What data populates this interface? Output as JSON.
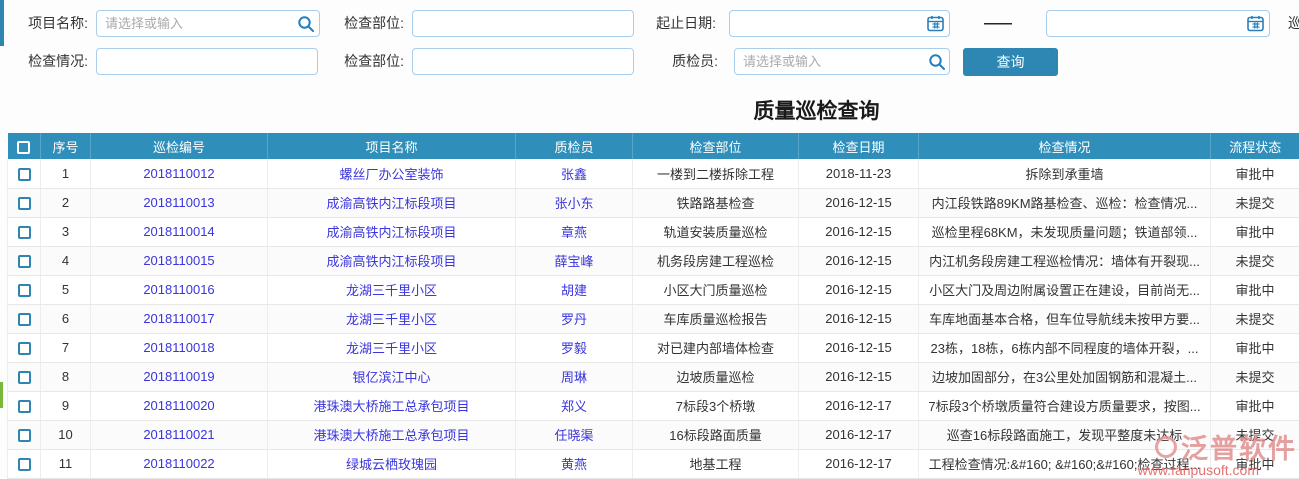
{
  "colors": {
    "header_bg": "#2f8fba",
    "button_bg": "#2d87b2",
    "link_color": "#3a35dd",
    "accent_top": "#2e86b0",
    "accent_green": "#7ab83a",
    "watermark": "#e08f8f"
  },
  "filters": {
    "project_label": "项目名称:",
    "project_placeholder": "请选择或输入",
    "part1_label": "检查部位:",
    "daterange_label": "起止日期:",
    "range_dash": "——",
    "situation_label": "检查情况:",
    "part2_label": "检查部位:",
    "inspector_label": "质检员:",
    "inspector_placeholder": "请选择或输入",
    "query_button": "查询",
    "clipped_text": "巡"
  },
  "title": "质量巡检查询",
  "table": {
    "headers": [
      "序号",
      "巡检编号",
      "项目名称",
      "质检员",
      "检查部位",
      "检查日期",
      "检查情况",
      "流程状态"
    ],
    "rows": [
      {
        "no": "1",
        "code": "2018110012",
        "project": "螺丝厂办公室装饰",
        "inspector": "张鑫",
        "part": "一楼到二楼拆除工程",
        "date": "2018-11-23",
        "situation": "拆除到承重墙",
        "status": "审批中"
      },
      {
        "no": "2",
        "code": "2018110013",
        "project": "成渝高铁内江标段项目",
        "inspector": "张小东",
        "part": "铁路路基检查",
        "date": "2016-12-15",
        "situation": "内江段铁路89KM路基检查、巡检：检查情况...",
        "status": "未提交"
      },
      {
        "no": "3",
        "code": "2018110014",
        "project": "成渝高铁内江标段项目",
        "inspector": "章燕",
        "part": "轨道安装质量巡检",
        "date": "2016-12-15",
        "situation": "巡检里程68KM，未发现质量问题；铁道部领...",
        "status": "审批中"
      },
      {
        "no": "4",
        "code": "2018110015",
        "project": "成渝高铁内江标段项目",
        "inspector": "薛宝峰",
        "part": "机务段房建工程巡检",
        "date": "2016-12-15",
        "situation": "内江机务段房建工程巡检情况：墙体有开裂现...",
        "status": "未提交"
      },
      {
        "no": "5",
        "code": "2018110016",
        "project": "龙湖三千里小区",
        "inspector": "胡建",
        "part": "小区大门质量巡检",
        "date": "2016-12-15",
        "situation": "小区大门及周边附属设置正在建设，目前尚无...",
        "status": "审批中"
      },
      {
        "no": "6",
        "code": "2018110017",
        "project": "龙湖三千里小区",
        "inspector": "罗丹",
        "part": "车库质量巡检报告",
        "date": "2016-12-15",
        "situation": "车库地面基本合格，但车位导航线未按甲方要...",
        "status": "未提交"
      },
      {
        "no": "7",
        "code": "2018110018",
        "project": "龙湖三千里小区",
        "inspector": "罗毅",
        "part": "对已建内部墙体检查",
        "date": "2016-12-15",
        "situation": "23栋，18栋，6栋内部不同程度的墙体开裂，...",
        "status": "审批中"
      },
      {
        "no": "8",
        "code": "2018110019",
        "project": "银亿滨江中心",
        "inspector": "周琳",
        "part": "边坡质量巡检",
        "date": "2016-12-15",
        "situation": "边坡加固部分，在3公里处加固钢筋和混凝土...",
        "status": "未提交"
      },
      {
        "no": "9",
        "code": "2018110020",
        "project": "港珠澳大桥施工总承包项目",
        "inspector": "郑义",
        "part": "7标段3个桥墩",
        "date": "2016-12-17",
        "situation": "7标段3个桥墩质量符合建设方质量要求，按图...",
        "status": "审批中"
      },
      {
        "no": "10",
        "code": "2018110021",
        "project": "港珠澳大桥施工总承包项目",
        "inspector": "任晓渠",
        "part": "16标段路面质量",
        "date": "2016-12-17",
        "situation": "巡查16标段路面施工，发现平整度未达标",
        "status": "未提交"
      },
      {
        "no": "11",
        "code": "2018110022",
        "project": "绿城云栖玫瑰园",
        "inspector": "黄燕",
        "part": "地基工程",
        "date": "2016-12-17",
        "situation": "工程检查情况:&#160; &#160;&#160;检查过程...",
        "status": "审批中"
      }
    ]
  },
  "watermark": {
    "brand": "泛普软件",
    "url": "www.fanpusoft.com"
  }
}
